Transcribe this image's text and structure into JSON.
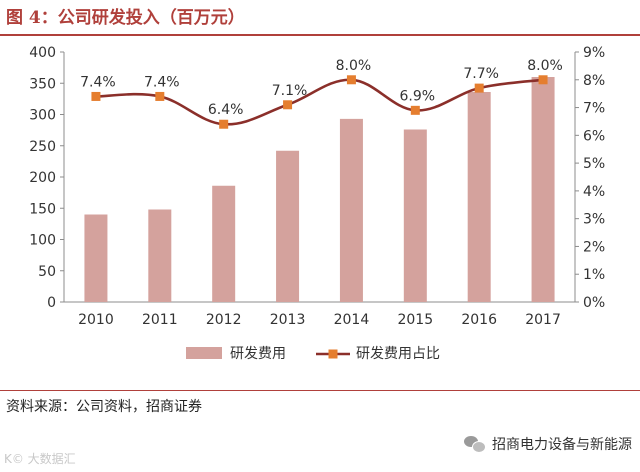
{
  "figure": {
    "title": "图 4：公司研发投入（百万元）",
    "source": "资料来源：公司资料，招商证券",
    "watermark_brand": "招商电力设备与新能源",
    "watermark_corner": "K© 大数据汇"
  },
  "colors": {
    "accent": "#b0403b",
    "bar": "#d4a29d",
    "line": "#8b2f2a",
    "marker": "#e57e2f",
    "axis": "#8c8c8c"
  },
  "chart_data": {
    "type": "bar+line",
    "categories": [
      "2010",
      "2011",
      "2012",
      "2013",
      "2014",
      "2015",
      "2016",
      "2017"
    ],
    "series": [
      {
        "name": "研发费用",
        "type": "bar",
        "axis": "left",
        "values": [
          140,
          148,
          186,
          242,
          293,
          276,
          336,
          360
        ]
      },
      {
        "name": "研发费用占比",
        "type": "line",
        "axis": "right",
        "values": [
          7.4,
          7.4,
          6.4,
          7.1,
          8.0,
          6.9,
          7.7,
          8.0
        ],
        "labels": [
          "7.4%",
          "7.4%",
          "6.4%",
          "7.1%",
          "8.0%",
          "6.9%",
          "7.7%",
          "8.0%"
        ]
      }
    ],
    "left_axis": {
      "min": 0,
      "max": 400,
      "step": 50,
      "ticks": [
        "0",
        "50",
        "100",
        "150",
        "200",
        "250",
        "300",
        "350",
        "400"
      ]
    },
    "right_axis": {
      "min": 0,
      "max": 9,
      "step": 1,
      "ticks": [
        "0%",
        "1%",
        "2%",
        "3%",
        "4%",
        "5%",
        "6%",
        "7%",
        "8%",
        "9%"
      ]
    },
    "legend_position": "bottom",
    "grid": false
  }
}
